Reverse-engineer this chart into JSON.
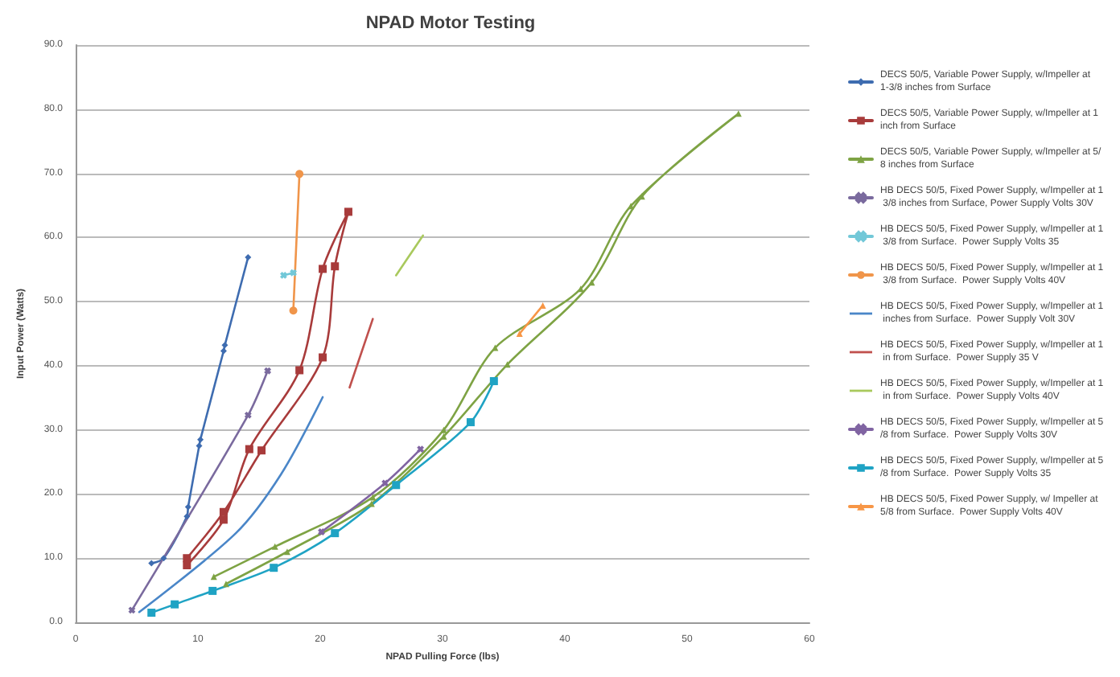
{
  "chart_data": {
    "type": "line",
    "title": "NPAD Motor Testing",
    "xlabel": "NPAD Pulling Force (lbs)",
    "ylabel": "Input Power (Watts)",
    "xlim": [
      0,
      60
    ],
    "xticks": [
      0,
      10,
      20,
      30,
      40,
      50,
      60
    ],
    "ylim": [
      0,
      90
    ],
    "yticks": [
      {
        "value": 0,
        "label": "0.0"
      },
      {
        "value": 10,
        "label": "10.0"
      },
      {
        "value": 20,
        "label": "20.0"
      },
      {
        "value": 30,
        "label": "30.0"
      },
      {
        "value": 40,
        "label": "40.0"
      },
      {
        "value": 50,
        "label": "50.0"
      },
      {
        "value": 60,
        "label": "60.0"
      },
      {
        "value": 70,
        "label": "70.0"
      },
      {
        "value": 80,
        "label": "80.0"
      },
      {
        "value": 90,
        "label": "90.0"
      }
    ],
    "grid": "y",
    "legend": "right",
    "series": [
      {
        "name": "DECS 50/5, Variable Power Supply, w/Impeller at 1-3/8 inches from Surface",
        "color": "#3e6cb0",
        "marker": "diamond",
        "x": [
          6.2,
          7.2,
          9.1,
          9.2,
          10.1,
          10.2,
          12.1,
          12.2,
          14.1
        ],
        "values": [
          9.2,
          10,
          16.5,
          18,
          27.5,
          28.5,
          42.3,
          43.2,
          56.9
        ]
      },
      {
        "name": "DECS 50/5, Variable Power Supply, w/Impeller at 1 inch from Surface",
        "color": "#a83b3b",
        "marker": "square",
        "x": [
          9.1,
          12.1,
          14.2,
          18.3,
          20.2,
          22.3,
          21.2,
          20.2,
          15.2,
          12.1,
          9.1
        ],
        "values": [
          8.9,
          16,
          27,
          39.3,
          55.1,
          64,
          55.5,
          41.3,
          26.8,
          17.2,
          10
        ]
      },
      {
        "name": "DECS 50/5, Variable Power Supply, w/Impeller at 5/8 inches from Surface",
        "color": "#7ea344",
        "marker": "triangle",
        "x": [
          11.3,
          16.3,
          24.3,
          30.1,
          34.3,
          41.3,
          45.4,
          54.2,
          46.3,
          42.2,
          35.3,
          30.1,
          24.2,
          17.3,
          12.3
        ],
        "values": [
          7.1,
          11.8,
          19.5,
          30,
          42.8,
          52,
          64.9,
          79.3,
          66.4,
          53,
          40.2,
          29,
          18.5,
          11,
          6
        ]
      },
      {
        "name": "HB DECS 50/5, Fixed Power Supply, w/Impeller at 1 3/8 inches from Surface, Power Supply Volts 30V",
        "color": "#7a6a9e",
        "marker": "cross",
        "x": [
          4.6,
          14.1,
          15.7
        ],
        "values": [
          1.9,
          32.3,
          39.2
        ]
      },
      {
        "name": "HB DECS 50/5, Fixed Power Supply, w/Impeller at 1 3/8 from Surface.  Power Supply Volts 35",
        "color": "#72c8d8",
        "marker": "cross",
        "x": [
          17.0,
          17.8
        ],
        "values": [
          54.1,
          54.5
        ]
      },
      {
        "name": "HB DECS 50/5, Fixed Power Supply, w/Impeller at 1 3/8 from Surface.  Power Supply Volts 40V",
        "color": "#f0954a",
        "marker": "circle",
        "x": [
          17.8,
          18.3
        ],
        "values": [
          48.6,
          69.9
        ]
      },
      {
        "name": "HB DECS 50/5, Fixed Power Supply, w/Impeller at 1 inches from Surface.  Power Supply Volt 30V",
        "color": "#4a86c8",
        "marker": "none",
        "x": [
          5.2,
          13.1,
          16.8,
          20.2
        ],
        "values": [
          1.6,
          13.9,
          23.1,
          35.1
        ]
      },
      {
        "name": "HB DECS 50/5, Fixed Power Supply, w/Impeller at 1 in from Surface.  Power Supply 35 V",
        "color": "#c0504d",
        "marker": "none",
        "x": [
          22.4,
          24.3
        ],
        "values": [
          36.6,
          47.3
        ]
      },
      {
        "name": "HB DECS 50/5, Fixed Power Supply, w/Impeller at 1 in from Surface.  Power Supply Volts 40V",
        "color": "#a9c95d",
        "marker": "none",
        "x": [
          26.2,
          28.4
        ],
        "values": [
          54.1,
          60.3
        ]
      },
      {
        "name": "HB DECS 50/5, Fixed Power Supply, w/Impeller at 5/8 from Surface.  Power Supply Volts 30V",
        "color": "#8064a2",
        "marker": "cross",
        "x": [
          20.1,
          25.3,
          28.2
        ],
        "values": [
          14.1,
          21.7,
          27
        ]
      },
      {
        "name": "HB DECS 50/5, Fixed Power Supply, w/Impeller at 5/8 from Surface.  Power Supply Volts 35",
        "color": "#1fa3c4",
        "marker": "square",
        "x": [
          6.2,
          8.1,
          11.2,
          16.2,
          21.2,
          26.2,
          32.3,
          34.2
        ],
        "values": [
          1.5,
          2.8,
          4.9,
          8.5,
          13.9,
          21.4,
          31.2,
          37.6
        ]
      },
      {
        "name": "HB DECS 50/5, Fixed Power Supply, w/ Impeller at 5/8 from Surface.  Power Supply Volts 40V",
        "color": "#f79646",
        "marker": "triangle",
        "x": [
          36.3,
          38.2
        ],
        "values": [
          45,
          49.4
        ]
      }
    ]
  }
}
